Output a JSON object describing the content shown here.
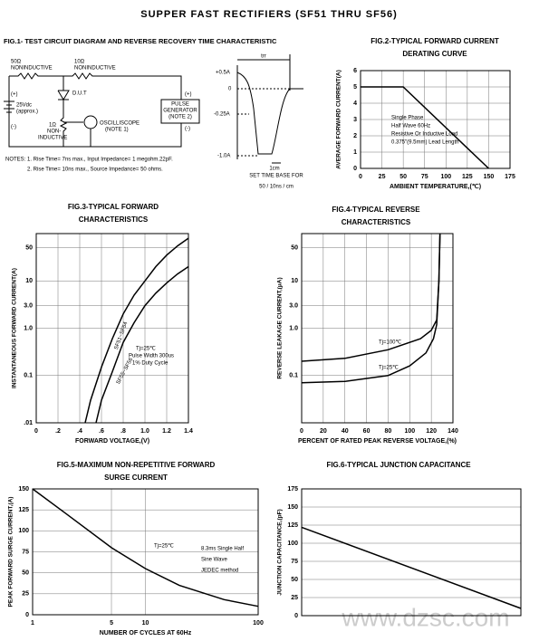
{
  "title": "SUPPER FAST RECTIFIERS (SF51 THRU  SF56)",
  "watermark": "www.dzsc.com",
  "fig1": {
    "title": "FIG.1- TEST CIRCUIT DIAGRAM AND REVERSE RECOVERY TIME CHARACTERISTIC",
    "labels": [
      "50Ω",
      "NONINDUCTIVE",
      "10Ω",
      "NONINDUCTIVE",
      "(+)",
      "25Vdc",
      "(approx.)",
      "(-)",
      "D.U.T",
      "1Ω",
      "NON-",
      "INDUCTIVE",
      "OSCILLISCOPE",
      "(NOTE 1)",
      "PULSE",
      "GENERATOR",
      "(NOTE 2)",
      "(+)",
      "(-)"
    ],
    "notes": [
      "NOTES: 1. Rise Time= 7ns max., Input Impedance= 1 megohm.22pF.",
      "2. Rise Time= 10ns max., Source Impedance= 50 ohms."
    ],
    "waveform": [
      "trr",
      "+0.5A",
      "0",
      "-0.25A",
      "-1.0A",
      "1cm",
      "SET TIME BASE FOR",
      "50 / 10ns / cm"
    ]
  },
  "chart_data": [
    {
      "type": "line",
      "title": [
        "FIG.2-TYPICAL FORWARD CURRENT",
        "DERATING CURVE"
      ],
      "xlabel": "AMBIENT TEMPERATURE,(℃)",
      "ylabel": "AVERAGE FORWARD CURRENT(A)",
      "xlim": [
        0,
        175
      ],
      "xticks": [
        0,
        25,
        50,
        75,
        100,
        125,
        150,
        175
      ],
      "ylim": [
        0,
        6
      ],
      "yticks": [
        0,
        1,
        2,
        3,
        4,
        5,
        6
      ],
      "grid": true,
      "series": [
        {
          "color": "#000000",
          "x": [
            0,
            50,
            150
          ],
          "values": [
            5,
            5,
            0
          ]
        }
      ],
      "annotations": [
        "Single Phase",
        "Half Wave 60Hz",
        "Resistive Or Inductive Load",
        "0.375\"(9.5mm) Lead Length"
      ]
    },
    {
      "type": "line",
      "title": [
        "FIG.3-TYPICAL FORWARD",
        "CHARACTERISTICS"
      ],
      "xlabel": "FORWARD VOLTAGE,(V)",
      "ylabel": "INSTANTANEOUS FORWARD CURRENT(A)",
      "xlim": [
        0,
        1.4
      ],
      "xticks": [
        0,
        {
          "value": 0.2,
          "label": ".2"
        },
        {
          "value": 0.4,
          "label": ".4"
        },
        {
          "value": 0.6,
          "label": ".6"
        },
        {
          "value": 0.8,
          "label": ".8"
        },
        {
          "value": 1,
          "label": "1.0"
        },
        1.2,
        1.4
      ],
      "ylim": [
        0.01,
        100
      ],
      "yscale": "log",
      "yticks": [
        {
          "value": 0.01,
          "label": ".01"
        },
        0.1,
        {
          "value": 1,
          "label": "1.0"
        },
        {
          "value": 3,
          "label": "3.0"
        },
        10,
        50
      ],
      "grid": true,
      "series": [
        {
          "name": "SF51~SF54",
          "color": "#000000",
          "x": [
            0.45,
            0.5,
            0.6,
            0.7,
            0.8,
            0.9,
            1.0,
            1.1,
            1.2,
            1.3,
            1.4
          ],
          "values": [
            0.01,
            0.03,
            0.15,
            0.6,
            2,
            5,
            10,
            20,
            35,
            55,
            80
          ]
        },
        {
          "name": "SF55~SF56",
          "color": "#000000",
          "x": [
            0.55,
            0.6,
            0.7,
            0.8,
            0.9,
            1.0,
            1.1,
            1.2,
            1.3,
            1.4
          ],
          "values": [
            0.01,
            0.03,
            0.12,
            0.5,
            1.3,
            3,
            5.5,
            9,
            14,
            20
          ]
        }
      ],
      "annotations": [
        "Tj=25℃",
        "Pulse Width 300us",
        "1% Duty Cycle"
      ]
    },
    {
      "type": "line",
      "title": [
        "FIG.4-TYPICAL REVERSE",
        "CHARACTERISTICS"
      ],
      "xlabel": "PERCENT OF RATED PEAK REVERSE VOLTAGE,(%)",
      "ylabel": "REVERSE LEAKAGE CURRENT,(μA)",
      "xlim": [
        0,
        140
      ],
      "xticks": [
        0,
        20,
        40,
        60,
        80,
        100,
        120,
        140
      ],
      "ylim": [
        0.01,
        100
      ],
      "yscale": "log",
      "yticks": [
        0.1,
        {
          "value": 1,
          "label": "1.0"
        },
        {
          "value": 3,
          "label": "3.0"
        },
        10,
        50
      ],
      "grid": true,
      "series": [
        {
          "name": "Tj=100℃",
          "color": "#000000",
          "x": [
            0,
            40,
            80,
            110,
            120,
            125,
            127,
            128
          ],
          "values": [
            0.2,
            0.23,
            0.35,
            0.6,
            0.9,
            1.5,
            10,
            100
          ]
        },
        {
          "name": "Tj=25℃",
          "color": "#000000",
          "x": [
            0,
            40,
            80,
            100,
            115,
            122,
            125,
            127,
            128
          ],
          "values": [
            0.07,
            0.075,
            0.1,
            0.16,
            0.3,
            0.6,
            1.2,
            10,
            100
          ]
        }
      ]
    },
    {
      "type": "line",
      "title": [
        "FIG.5-MAXIMUM NON-REPETITIVE FORWARD",
        "SURGE CURRENT"
      ],
      "xlabel": "NUMBER OF CYCLES AT 60Hz",
      "ylabel": "PEAK FORWARD SURGE CURRENT,(A)",
      "xlim": [
        1,
        100
      ],
      "xscale": "log",
      "xticks": [
        1,
        5,
        10,
        100
      ],
      "ylim": [
        0,
        150
      ],
      "yticks": [
        0,
        25,
        50,
        75,
        100,
        125,
        150
      ],
      "grid": true,
      "series": [
        {
          "color": "#000000",
          "x": [
            1,
            2,
            5,
            10,
            20,
            50,
            100
          ],
          "values": [
            150,
            120,
            80,
            55,
            35,
            18,
            10
          ]
        }
      ],
      "annotations": [
        "Tj=25℃",
        "8.3ms Single Half",
        "Sine Wave",
        "JEDEC method"
      ]
    },
    {
      "type": "line",
      "title": [
        "FIG.6-TYPICAL JUNCTION CAPACITANCE"
      ],
      "ylabel": "JUNCTION CAPACITANCE,(pF)",
      "xlim": [
        1,
        100
      ],
      "xscale": "log",
      "ylim": [
        0,
        175
      ],
      "yticks": [
        0,
        25,
        50,
        75,
        100,
        125,
        150,
        175
      ],
      "grid": true,
      "series": [
        {
          "color": "#000000",
          "x": [
            1,
            100
          ],
          "values": [
            122,
            10
          ]
        }
      ]
    }
  ]
}
